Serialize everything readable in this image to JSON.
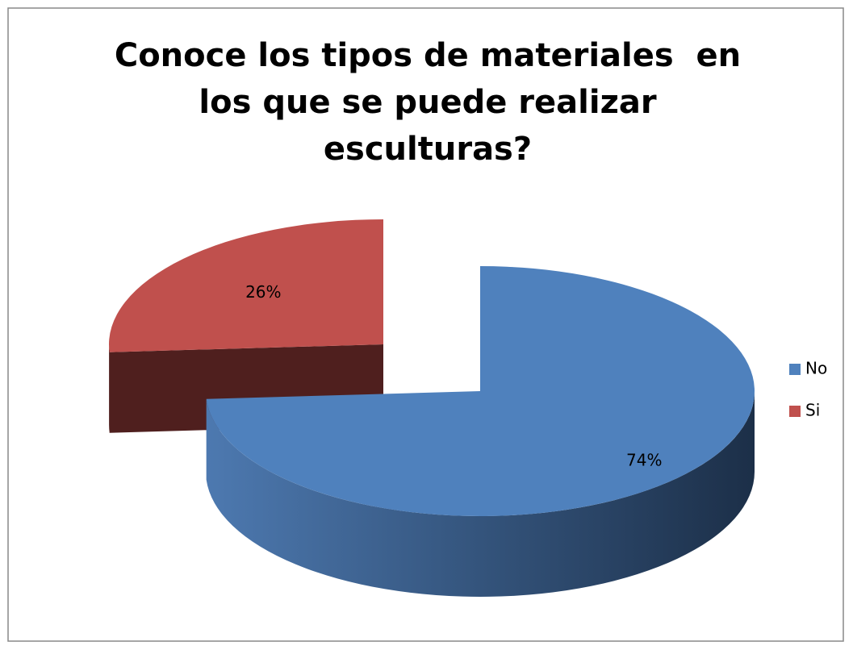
{
  "chart_data": {
    "type": "pie",
    "title": "Conoce los tipos de materiales  en los que se puede realizar esculturas?",
    "categories": [
      "No",
      "Si"
    ],
    "values": [
      74,
      26
    ],
    "value_labels": [
      "74%",
      "26%"
    ],
    "colors": [
      "#4f81bd",
      "#c0504d"
    ],
    "legend": "right"
  }
}
